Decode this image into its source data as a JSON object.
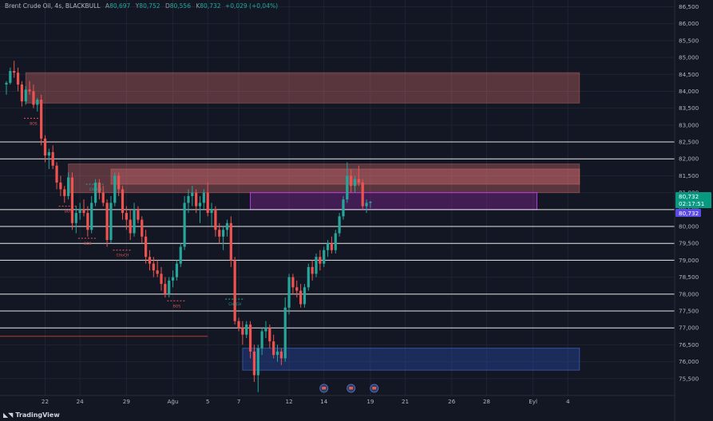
{
  "header": {
    "symbol": "Brent Crude Oil, 4s, BLACKBULL",
    "o_label": "A",
    "o_value": "80,697",
    "h_label": "Y",
    "h_value": "80,752",
    "l_label": "D",
    "l_value": "80,556",
    "c_label": "K",
    "c_value": "80,732",
    "change": "+0,029 (+0,04%)"
  },
  "brand": {
    "name": "TradingView"
  },
  "colors": {
    "bg": "#121723",
    "up": "#26a69a",
    "down": "#ef5350",
    "grid": "#1e2433",
    "axis_text": "#b2b5be"
  },
  "chart_data": {
    "type": "candlestick",
    "y_axis": {
      "min": 75.0,
      "max": 86.7,
      "ticks": [
        "86,500",
        "86,000",
        "85,500",
        "85,000",
        "84,500",
        "84,000",
        "83,500",
        "83,000",
        "82,500",
        "82,000",
        "81,500",
        "81,000",
        "80,500",
        "80,000",
        "79,500",
        "79,000",
        "78,500",
        "78,000",
        "77,500",
        "77,000",
        "76,500",
        "76,000",
        "75,500"
      ],
      "tick_values": [
        86.5,
        86.0,
        85.5,
        85.0,
        84.5,
        84.0,
        83.5,
        83.0,
        82.5,
        82.0,
        81.5,
        81.0,
        80.5,
        80.0,
        79.5,
        79.0,
        78.5,
        78.0,
        77.5,
        77.0,
        76.5,
        76.0,
        75.5
      ]
    },
    "x_axis": {
      "labels": [
        "22",
        "24",
        "29",
        "Ağu",
        "5",
        "7",
        "12",
        "14",
        "19",
        "21",
        "26",
        "28",
        "Eyl",
        "4"
      ],
      "label_index": [
        10,
        19,
        31,
        43,
        52,
        60,
        73,
        82,
        94,
        103,
        115,
        124,
        136,
        145
      ]
    },
    "last_price": {
      "value": 80.732,
      "label": "80,732",
      "countdown": "02:17:51"
    },
    "second_price_tag": {
      "value": 80.732,
      "label": "80,732"
    },
    "horizontal_levels": [
      82.5,
      82.0,
      80.5,
      80.0,
      79.5,
      79.0,
      78.0,
      77.5,
      77.0
    ],
    "short_level": {
      "value": 76.75,
      "from_index": -1,
      "to_index": 52
    },
    "zones": [
      {
        "kind": "supply",
        "top": 84.55,
        "bottom": 83.65,
        "from_index": 5,
        "to_index": 148
      },
      {
        "kind": "supply",
        "top": 81.85,
        "bottom": 81.0,
        "from_index": 16,
        "to_index": 148
      },
      {
        "kind": "supply",
        "top": 81.7,
        "bottom": 81.25,
        "from_index": 27,
        "to_index": 148
      },
      {
        "kind": "fvg",
        "top": 81.0,
        "bottom": 80.5,
        "from_index": 63,
        "to_index": 137
      },
      {
        "kind": "demand",
        "top": 76.4,
        "bottom": 75.75,
        "from_index": 61,
        "to_index": 148
      }
    ],
    "annotations": [
      {
        "text": "BOS",
        "index": 7,
        "value": 83.2,
        "color": "down"
      },
      {
        "text": "BOS",
        "index": 16,
        "value": 80.6,
        "color": "down"
      },
      {
        "text": "CHoCH",
        "index": 23,
        "value": 81.25,
        "color": "up"
      },
      {
        "text": "BOS",
        "index": 21,
        "value": 79.65,
        "color": "down"
      },
      {
        "text": "CHoCH",
        "index": 30,
        "value": 79.3,
        "color": "down"
      },
      {
        "text": "BOS",
        "index": 44,
        "value": 77.8,
        "color": "down"
      },
      {
        "text": "CHoCH",
        "index": 59,
        "value": 77.85,
        "color": "up"
      }
    ],
    "candles": [
      [
        84.2,
        84.3,
        83.9,
        84.25
      ],
      [
        84.25,
        84.7,
        84.2,
        84.6
      ],
      [
        84.6,
        84.9,
        84.4,
        84.55
      ],
      [
        84.55,
        84.7,
        84.0,
        84.2
      ],
      [
        84.2,
        84.3,
        83.55,
        83.7
      ],
      [
        83.7,
        84.15,
        83.6,
        84.05
      ],
      [
        84.05,
        84.3,
        83.9,
        84.0
      ],
      [
        84.0,
        84.2,
        83.5,
        83.6
      ],
      [
        83.6,
        83.8,
        83.4,
        83.75
      ],
      [
        83.75,
        83.9,
        82.4,
        82.6
      ],
      [
        82.6,
        82.7,
        81.9,
        82.1
      ],
      [
        82.1,
        82.3,
        81.7,
        82.2
      ],
      [
        82.2,
        82.4,
        81.7,
        81.8
      ],
      [
        81.8,
        81.9,
        81.1,
        81.3
      ],
      [
        81.3,
        81.5,
        80.9,
        81.1
      ],
      [
        81.1,
        81.2,
        80.7,
        80.9
      ],
      [
        80.9,
        81.6,
        80.8,
        81.45
      ],
      [
        81.45,
        81.6,
        79.9,
        80.1
      ],
      [
        80.1,
        80.6,
        79.8,
        80.4
      ],
      [
        80.4,
        80.7,
        80.2,
        80.5
      ],
      [
        80.5,
        80.8,
        80.3,
        80.4
      ],
      [
        80.4,
        80.6,
        79.7,
        79.9
      ],
      [
        79.9,
        80.9,
        79.8,
        80.7
      ],
      [
        80.7,
        81.4,
        80.6,
        81.3
      ],
      [
        81.3,
        81.4,
        80.8,
        81.0
      ],
      [
        81.0,
        81.2,
        80.6,
        80.7
      ],
      [
        80.7,
        80.8,
        79.4,
        79.6
      ],
      [
        79.6,
        80.9,
        79.5,
        80.7
      ],
      [
        80.7,
        81.6,
        80.6,
        81.5
      ],
      [
        81.5,
        81.6,
        80.9,
        81.1
      ],
      [
        81.1,
        81.2,
        80.2,
        80.4
      ],
      [
        80.4,
        80.6,
        79.9,
        80.2
      ],
      [
        80.2,
        80.5,
        79.6,
        79.8
      ],
      [
        79.8,
        80.7,
        79.7,
        80.5
      ],
      [
        80.5,
        80.6,
        80.1,
        80.2
      ],
      [
        80.2,
        80.3,
        79.5,
        79.7
      ],
      [
        79.7,
        79.9,
        78.9,
        79.1
      ],
      [
        79.1,
        79.3,
        78.7,
        78.9
      ],
      [
        78.9,
        79.1,
        78.5,
        78.7
      ],
      [
        78.7,
        79.0,
        78.5,
        78.6
      ],
      [
        78.6,
        78.8,
        78.1,
        78.3
      ],
      [
        78.3,
        78.5,
        77.9,
        78.0
      ],
      [
        78.0,
        78.5,
        77.9,
        78.4
      ],
      [
        78.4,
        78.7,
        78.2,
        78.5
      ],
      [
        78.5,
        79.0,
        78.4,
        78.9
      ],
      [
        78.9,
        79.5,
        78.8,
        79.4
      ],
      [
        79.4,
        80.9,
        79.3,
        80.7
      ],
      [
        80.7,
        81.1,
        80.4,
        80.9
      ],
      [
        80.9,
        81.2,
        80.6,
        81.0
      ],
      [
        81.0,
        81.1,
        80.4,
        80.6
      ],
      [
        80.6,
        80.9,
        80.1,
        80.7
      ],
      [
        80.7,
        81.1,
        80.5,
        81.0
      ],
      [
        81.0,
        81.3,
        80.3,
        80.4
      ],
      [
        80.4,
        80.7,
        80.0,
        80.5
      ],
      [
        80.5,
        80.6,
        79.7,
        79.9
      ],
      [
        79.9,
        80.1,
        79.5,
        79.7
      ],
      [
        79.7,
        80.0,
        79.3,
        79.9
      ],
      [
        79.9,
        80.2,
        79.7,
        80.1
      ],
      [
        80.1,
        80.3,
        78.8,
        79.0
      ],
      [
        79.0,
        79.1,
        77.1,
        77.2
      ],
      [
        77.2,
        77.3,
        76.9,
        77.0
      ],
      [
        77.0,
        77.2,
        76.5,
        76.8
      ],
      [
        76.8,
        77.2,
        76.7,
        77.1
      ],
      [
        77.1,
        77.2,
        76.1,
        76.3
      ],
      [
        76.3,
        76.5,
        75.4,
        75.6
      ],
      [
        75.6,
        76.5,
        75.1,
        76.4
      ],
      [
        76.4,
        77.0,
        76.2,
        76.9
      ],
      [
        76.9,
        77.2,
        76.7,
        77.0
      ],
      [
        77.0,
        77.1,
        76.4,
        76.6
      ],
      [
        76.6,
        76.8,
        76.1,
        76.2
      ],
      [
        76.2,
        76.5,
        76.0,
        76.3
      ],
      [
        76.3,
        76.4,
        75.9,
        76.1
      ],
      [
        76.1,
        77.9,
        76.0,
        77.6
      ],
      [
        77.6,
        78.6,
        77.4,
        78.5
      ],
      [
        78.5,
        78.6,
        78.0,
        78.2
      ],
      [
        78.2,
        78.4,
        77.9,
        78.1
      ],
      [
        78.1,
        78.3,
        77.6,
        77.7
      ],
      [
        77.7,
        78.3,
        77.6,
        78.2
      ],
      [
        78.2,
        78.9,
        78.1,
        78.8
      ],
      [
        78.8,
        79.0,
        78.4,
        78.6
      ],
      [
        78.6,
        79.2,
        78.5,
        79.1
      ],
      [
        79.1,
        79.3,
        78.7,
        78.9
      ],
      [
        78.9,
        79.4,
        78.8,
        79.3
      ],
      [
        79.3,
        79.6,
        79.1,
        79.5
      ],
      [
        79.5,
        79.7,
        79.2,
        79.3
      ],
      [
        79.3,
        79.9,
        79.2,
        79.8
      ],
      [
        79.8,
        80.4,
        79.7,
        80.3
      ],
      [
        80.3,
        80.9,
        80.2,
        80.8
      ],
      [
        80.8,
        81.9,
        80.7,
        81.5
      ],
      [
        81.5,
        81.7,
        81.0,
        81.2
      ],
      [
        81.2,
        81.5,
        81.0,
        81.4
      ],
      [
        81.4,
        81.8,
        81.2,
        81.3
      ],
      [
        81.3,
        81.4,
        80.5,
        80.6
      ],
      [
        80.6,
        80.8,
        80.4,
        80.7
      ],
      [
        80.7,
        80.75,
        80.55,
        80.732
      ]
    ]
  }
}
